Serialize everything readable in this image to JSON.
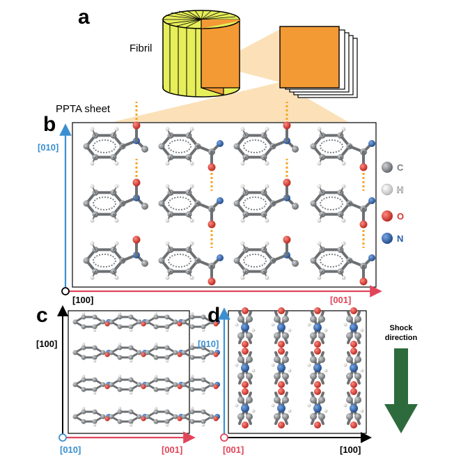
{
  "panels": {
    "a": "a",
    "b": "b",
    "c": "c",
    "d": "d"
  },
  "panel_a": {
    "fibril_label": "Fibril",
    "sheet_label": "PPTA sheet"
  },
  "panel_b": {
    "axis_vertical": "[010]",
    "axis_origin": "[100]",
    "axis_horizontal": "[001]"
  },
  "panel_c": {
    "axis_vertical": "[100]",
    "axis_origin": "[010]",
    "axis_horizontal": "[001]"
  },
  "panel_d": {
    "axis_vertical": "[010]",
    "axis_origin": "[001]",
    "axis_horizontal": "[100]"
  },
  "legend": [
    {
      "symbol": "C",
      "color": "#7a7d80"
    },
    {
      "symbol": "H",
      "color": "#e4e4e4"
    },
    {
      "symbol": "O",
      "color": "#d8342c"
    },
    {
      "symbol": "N",
      "color": "#2a5fa8"
    }
  ],
  "shock": {
    "line1": "Shock",
    "line2": "direction",
    "arrow_color": "#2d6b3d"
  },
  "colors": {
    "axis_blue": "#3a8fd0",
    "axis_red": "#e0455a",
    "hbond": "#f5a623",
    "fibril_yellow": "#e6ee5a",
    "sheet_orange": "#f39a35"
  }
}
